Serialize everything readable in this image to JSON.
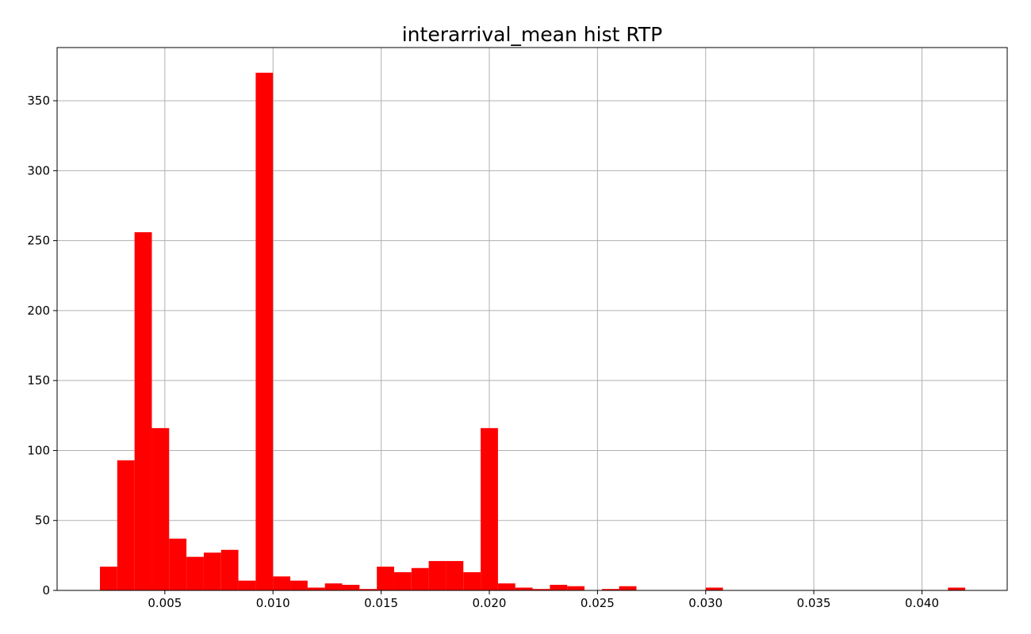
{
  "chart_data": {
    "type": "bar",
    "title": "interarrival_mean hist RTP",
    "xlabel": "",
    "ylabel": "",
    "bar_color": "#ff0000",
    "grid": true,
    "xlim": [
      2e-05,
      0.04394
    ],
    "ylim": [
      0,
      388
    ],
    "x_ticks": [
      0.005,
      0.01,
      0.015,
      0.02,
      0.025,
      0.03,
      0.035,
      0.04
    ],
    "x_tick_labels": [
      "0.005",
      "0.010",
      "0.015",
      "0.020",
      "0.025",
      "0.030",
      "0.035",
      "0.040"
    ],
    "y_ticks": [
      0,
      50,
      100,
      150,
      200,
      250,
      300,
      350
    ],
    "y_tick_labels": [
      "0",
      "50",
      "100",
      "150",
      "200",
      "250",
      "300",
      "350"
    ],
    "bin_start": 0.002,
    "bin_width": 0.0008,
    "values": [
      17,
      93,
      256,
      116,
      37,
      24,
      27,
      29,
      7,
      370,
      10,
      7,
      2,
      5,
      4,
      1,
      17,
      13,
      16,
      21,
      21,
      13,
      116,
      5,
      2,
      1,
      4,
      3,
      0,
      1,
      3,
      0,
      0,
      0,
      0,
      2,
      0,
      0,
      0,
      0,
      0,
      0,
      0,
      0,
      0,
      0,
      0,
      0,
      0,
      2
    ]
  }
}
